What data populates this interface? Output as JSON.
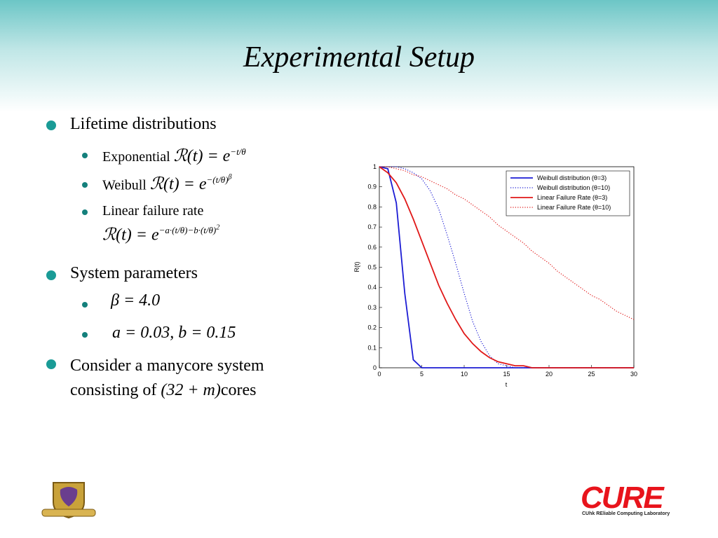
{
  "title": "Experimental Setup",
  "bullets": [
    {
      "text": "Lifetime distributions",
      "items": [
        {
          "text": "Exponential",
          "formula": {
            "base": "ℛ(t) = e",
            "exponent": "−t/θ"
          }
        },
        {
          "text": "Weibull",
          "formula": {
            "base": "ℛ(t) = e",
            "exponent": "−(t/θ)",
            "power": "β"
          }
        },
        {
          "text": "Linear failure rate",
          "formula": {
            "base": "ℛ(t) = e",
            "exponent": "−a·(t/θ)−b·(t/θ)",
            "power": "2"
          }
        }
      ]
    },
    {
      "text": "System parameters",
      "items": [
        {
          "formula": "β = 4.0"
        },
        {
          "formula": "a = 0.03, b = 0.15"
        }
      ]
    },
    {
      "text": "Consider a manycore system consisting of",
      "formula": "(32 + m)",
      "suffix": "cores"
    }
  ],
  "chart_data": {
    "type": "line",
    "xlabel": "t",
    "ylabel": "R(t)",
    "x": [
      0,
      1,
      2,
      3,
      4,
      5,
      6,
      7,
      8,
      9,
      10,
      11,
      12,
      13,
      14,
      15,
      16,
      17,
      18,
      19,
      20,
      21,
      22,
      23,
      24,
      25,
      26,
      27,
      28,
      29,
      30
    ],
    "series": [
      {
        "name": "Weibull distribution (θ=3)",
        "color": "#1c1cd4",
        "style": "solid",
        "values": [
          1,
          0.99,
          0.82,
          0.37,
          0.04,
          0,
          0,
          0,
          0,
          0,
          0,
          0,
          0,
          0,
          0,
          0,
          0,
          0,
          0,
          0,
          0,
          0,
          0,
          0,
          0,
          0,
          0,
          0,
          0,
          0,
          0
        ]
      },
      {
        "name": "Weibull distribution (θ=10)",
        "color": "#1c1cd4",
        "style": "dotted",
        "values": [
          1,
          1,
          1,
          0.99,
          0.97,
          0.94,
          0.88,
          0.79,
          0.66,
          0.52,
          0.37,
          0.23,
          0.13,
          0.06,
          0.02,
          0.01,
          0,
          0,
          0,
          0,
          0,
          0,
          0,
          0,
          0,
          0,
          0,
          0,
          0,
          0,
          0
        ]
      },
      {
        "name": "Linear Failure Rate (θ=3)",
        "color": "#e01818",
        "style": "solid",
        "values": [
          1,
          0.97,
          0.92,
          0.84,
          0.74,
          0.63,
          0.52,
          0.41,
          0.32,
          0.24,
          0.17,
          0.12,
          0.08,
          0.05,
          0.03,
          0.02,
          0.01,
          0.01,
          0,
          0,
          0,
          0,
          0,
          0,
          0,
          0,
          0,
          0,
          0,
          0,
          0
        ]
      },
      {
        "name": "Linear Failure Rate (θ=10)",
        "color": "#e01818",
        "style": "dotted",
        "values": [
          1,
          1,
          0.99,
          0.98,
          0.96,
          0.95,
          0.93,
          0.91,
          0.89,
          0.86,
          0.84,
          0.81,
          0.78,
          0.75,
          0.71,
          0.68,
          0.65,
          0.62,
          0.58,
          0.55,
          0.52,
          0.48,
          0.45,
          0.42,
          0.39,
          0.36,
          0.34,
          0.31,
          0.28,
          0.26,
          0.24
        ]
      }
    ],
    "xlim": [
      0,
      30
    ],
    "xticks": [
      0,
      5,
      10,
      15,
      20,
      25,
      30
    ],
    "ylim": [
      0,
      1
    ],
    "yticks": [
      0,
      0.1,
      0.2,
      0.3,
      0.4,
      0.5,
      0.6,
      0.7,
      0.8,
      0.9,
      1
    ],
    "grid": false,
    "legend": "upper right"
  },
  "footer": {
    "lab_logo": "CURE",
    "lab_name": "CUhk REliable Computing Laboratory"
  }
}
